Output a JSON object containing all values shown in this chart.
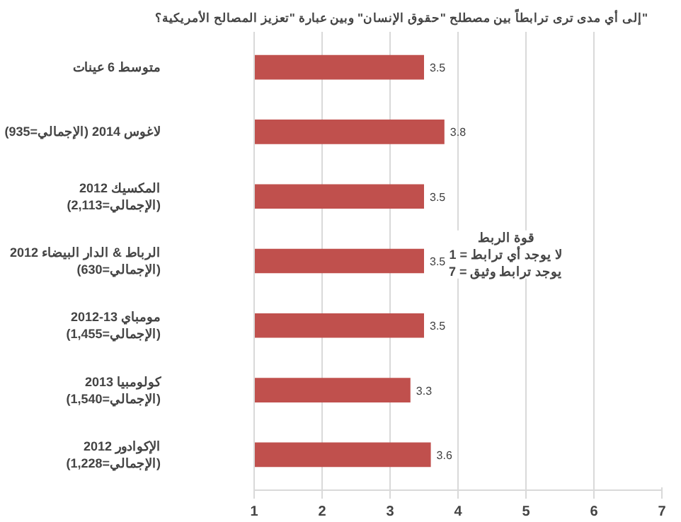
{
  "chart_data": {
    "type": "bar",
    "orientation": "horizontal",
    "title": "إلى أي مدى ترى ترابطاً بين مصطلح \"حقوق الإنسان\" وبين عبارة \"تعزيز المصالح الأمريكية؟\"",
    "categories": [
      "متوسط 6 عينات",
      "لاغوس 2014 (الإجمالي=935)",
      "المكسيك 2012\n(الإجمالي=2,113)",
      "الرباط & الدار البيضاء 2012\n(الإجمالي=630)",
      "مومباي 13-2012\n(الإجمالي=1,455)",
      "كولومبيا 2013\n(الإجمالي=1,540)",
      "الإكوادور 2012\n(الإجمالي=1,228)"
    ],
    "values": [
      3.5,
      3.8,
      3.5,
      3.5,
      3.5,
      3.3,
      3.6
    ],
    "color": "#c0504d",
    "xlim": [
      1,
      7
    ],
    "xticks": [
      1,
      2,
      3,
      4,
      5,
      6,
      7
    ],
    "grid": "x",
    "data_labels": true,
    "annotations": [
      "قوة الربط\nلا يوجد أي ترابط = 1\nيوجد ترابط وثيق = 7"
    ]
  }
}
